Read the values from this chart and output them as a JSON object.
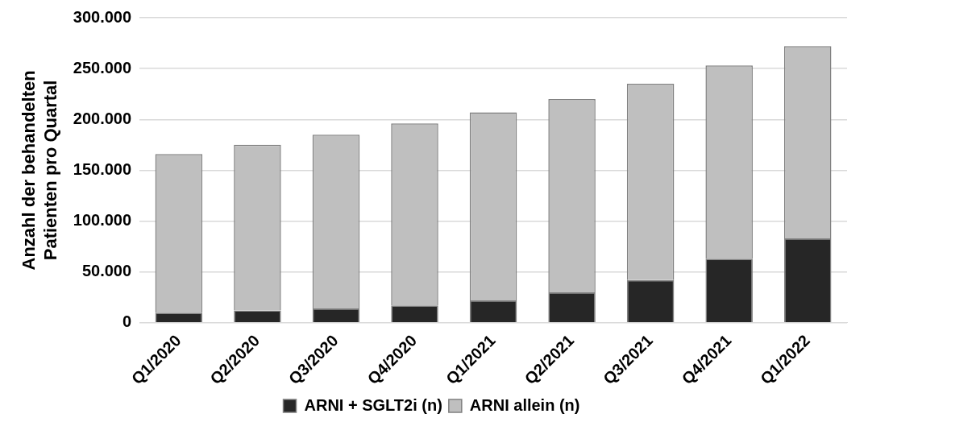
{
  "chart_data": {
    "type": "bar",
    "stacked": true,
    "ylabel": "Anzahl der behandelten\nPatienten pro Quartal",
    "categories": [
      "Q1/2020",
      "Q2/2020",
      "Q3/2020",
      "Q4/2020",
      "Q1/2021",
      "Q2/2021",
      "Q3/2021",
      "Q4/2021",
      "Q1/2022"
    ],
    "series": [
      {
        "name": "ARNI + SGLT2i (n)",
        "color": "#262626",
        "values": [
          10000,
          12000,
          14000,
          17000,
          22000,
          30000,
          42000,
          63000,
          83000
        ]
      },
      {
        "name": "ARNI allein (n)",
        "color": "#bfbfbf",
        "values": [
          156000,
          163000,
          171000,
          179000,
          185000,
          190000,
          193000,
          190000,
          189000
        ]
      }
    ],
    "ylim": [
      0,
      300000
    ],
    "yticks": [
      {
        "value": 0,
        "label": "0"
      },
      {
        "value": 50000,
        "label": "50.000"
      },
      {
        "value": 100000,
        "label": "100.000"
      },
      {
        "value": 150000,
        "label": "150.000"
      },
      {
        "value": 200000,
        "label": "200.000"
      },
      {
        "value": 250000,
        "label": "250.000"
      },
      {
        "value": 300000,
        "label": "300.000"
      }
    ],
    "grid": "y",
    "legend": "bottom"
  }
}
